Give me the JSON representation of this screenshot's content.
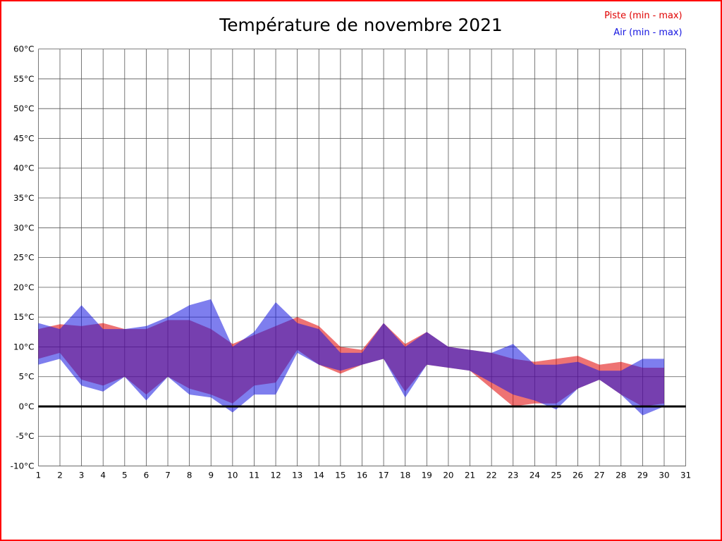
{
  "frame_color": "#ff0000",
  "chart_data": {
    "type": "area",
    "title": "Température de novembre 2021",
    "xlabel": "",
    "ylabel": "",
    "xlim": [
      1,
      31
    ],
    "ylim": [
      -10,
      60
    ],
    "ytick_step": 5,
    "ytick_suffix": "°C",
    "grid": true,
    "legend_position": "top-right",
    "zero_line": {
      "value": 0,
      "color": "#000000"
    },
    "days": [
      1,
      2,
      3,
      4,
      5,
      6,
      7,
      8,
      9,
      10,
      11,
      12,
      13,
      14,
      15,
      16,
      17,
      18,
      19,
      20,
      21,
      22,
      23,
      24,
      25,
      26,
      27,
      28,
      29,
      30
    ],
    "series": [
      {
        "id": "piste",
        "name": "Piste (min - max)",
        "color": "#e00000",
        "min": [
          8,
          9,
          4.5,
          3.5,
          5,
          2,
          5,
          3,
          2,
          0.5,
          3.5,
          4,
          9.5,
          7,
          5.5,
          7,
          8,
          2.5,
          7,
          6.5,
          6,
          3,
          0,
          0.5,
          0.5,
          3,
          4.5,
          2,
          0,
          0.5
        ],
        "max": [
          13,
          13.8,
          13.5,
          14,
          13,
          13,
          14.5,
          14.5,
          13,
          10.5,
          12,
          13.5,
          15,
          13.5,
          10,
          9.5,
          14,
          10.5,
          12.5,
          10,
          9.5,
          9,
          8,
          7.5,
          8,
          8.5,
          7,
          7.5,
          6.5,
          6.5
        ]
      },
      {
        "id": "air",
        "name": "Air (min - max)",
        "color": "#1414e0",
        "min": [
          7,
          8,
          3.5,
          2.5,
          5,
          1,
          5,
          2,
          1.5,
          -1,
          2,
          2,
          9,
          7,
          6,
          7,
          8,
          1.5,
          7,
          6.5,
          6,
          4,
          2,
          1,
          -0.5,
          3,
          4.5,
          2,
          -1.5,
          0
        ],
        "max": [
          14,
          13,
          17,
          13,
          13,
          13.5,
          15,
          17,
          18,
          10,
          12.5,
          17.5,
          14,
          13,
          9,
          9,
          14,
          10,
          12.5,
          10,
          9.5,
          9,
          10.5,
          7,
          7,
          7.5,
          6,
          6,
          8,
          8
        ]
      }
    ]
  }
}
